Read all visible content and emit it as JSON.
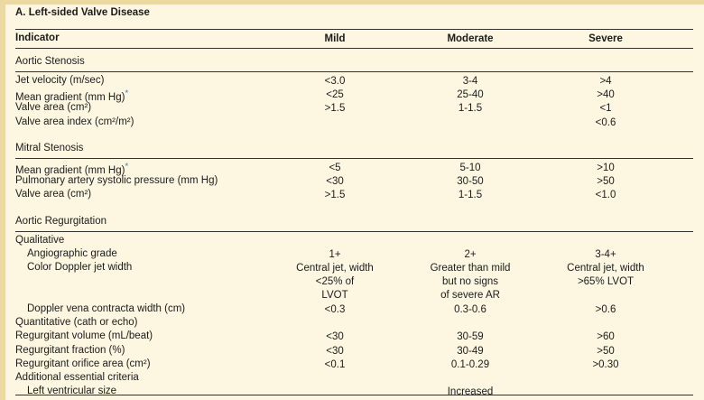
{
  "title": "A. Left-sided Valve Disease",
  "headers": {
    "indicator": "Indicator",
    "mild": "Mild",
    "moderate": "Moderate",
    "severe": "Severe"
  },
  "sections": [
    {
      "name": "Aortic Stenosis",
      "rows": [
        {
          "label": "Jet velocity (m/sec)",
          "mild": "<3.0",
          "moderate": "3-4",
          "severe": ">4"
        },
        {
          "label": "Mean gradient (mm Hg)",
          "asterisk": "*",
          "mild": "<25",
          "moderate": "25-40",
          "severe": ">40"
        },
        {
          "label": "Valve area (cm²)",
          "mild": ">1.5",
          "moderate": "1-1.5",
          "severe": "<1"
        },
        {
          "label": "Valve area index (cm²/m²)",
          "mild": "",
          "moderate": "",
          "severe": "<0.6"
        }
      ]
    },
    {
      "name": "Mitral Stenosis",
      "rows": [
        {
          "label": "Mean gradient (mm Hg)",
          "asterisk": "*",
          "mild": "<5",
          "moderate": "5-10",
          "severe": ">10"
        },
        {
          "label": "Pulmonary artery systolic pressure (mm Hg)",
          "mild": "<30",
          "moderate": "30-50",
          "severe": ">50"
        },
        {
          "label": "Valve area (cm²)",
          "mild": ">1.5",
          "moderate": "1-1.5",
          "severe": "<1.0"
        }
      ]
    },
    {
      "name": "Aortic Regurgitation",
      "rows": [
        {
          "label": "Qualitative",
          "mild": "",
          "moderate": "",
          "severe": ""
        },
        {
          "label": "Angiographic grade",
          "indent": true,
          "mild": "1+",
          "moderate": "2+",
          "severe": "3-4+"
        },
        {
          "label": "Color Doppler jet width",
          "indent": true,
          "lines": 3,
          "mild": "Central jet, width\n<25% of\nLVOT",
          "moderate": "Greater than mild\nbut no signs\nof severe AR",
          "severe": "Central jet, width\n>65% LVOT"
        },
        {
          "label": "Doppler vena contracta width (cm)",
          "indent": true,
          "mild": "<0.3",
          "moderate": "0.3-0.6",
          "severe": ">0.6"
        },
        {
          "label": "Quantitative (cath or echo)",
          "mild": "",
          "moderate": "",
          "severe": ""
        },
        {
          "label": "Regurgitant volume (mL/beat)",
          "mild": "<30",
          "moderate": "30-59",
          "severe": ">60"
        },
        {
          "label": "Regurgitant fraction (%)",
          "mild": "<30",
          "moderate": "30-49",
          "severe": ">50"
        },
        {
          "label": "Regurgitant orifice area (cm²)",
          "mild": "<0.1",
          "moderate": "0.1-0.29",
          "severe": ">0.30"
        },
        {
          "label": "Additional essential criteria",
          "mild": "",
          "moderate": "",
          "severe": ""
        },
        {
          "label": "Left ventricular size",
          "indent": true,
          "mild": "",
          "moderate": "Increased",
          "severe": ""
        }
      ]
    }
  ]
}
